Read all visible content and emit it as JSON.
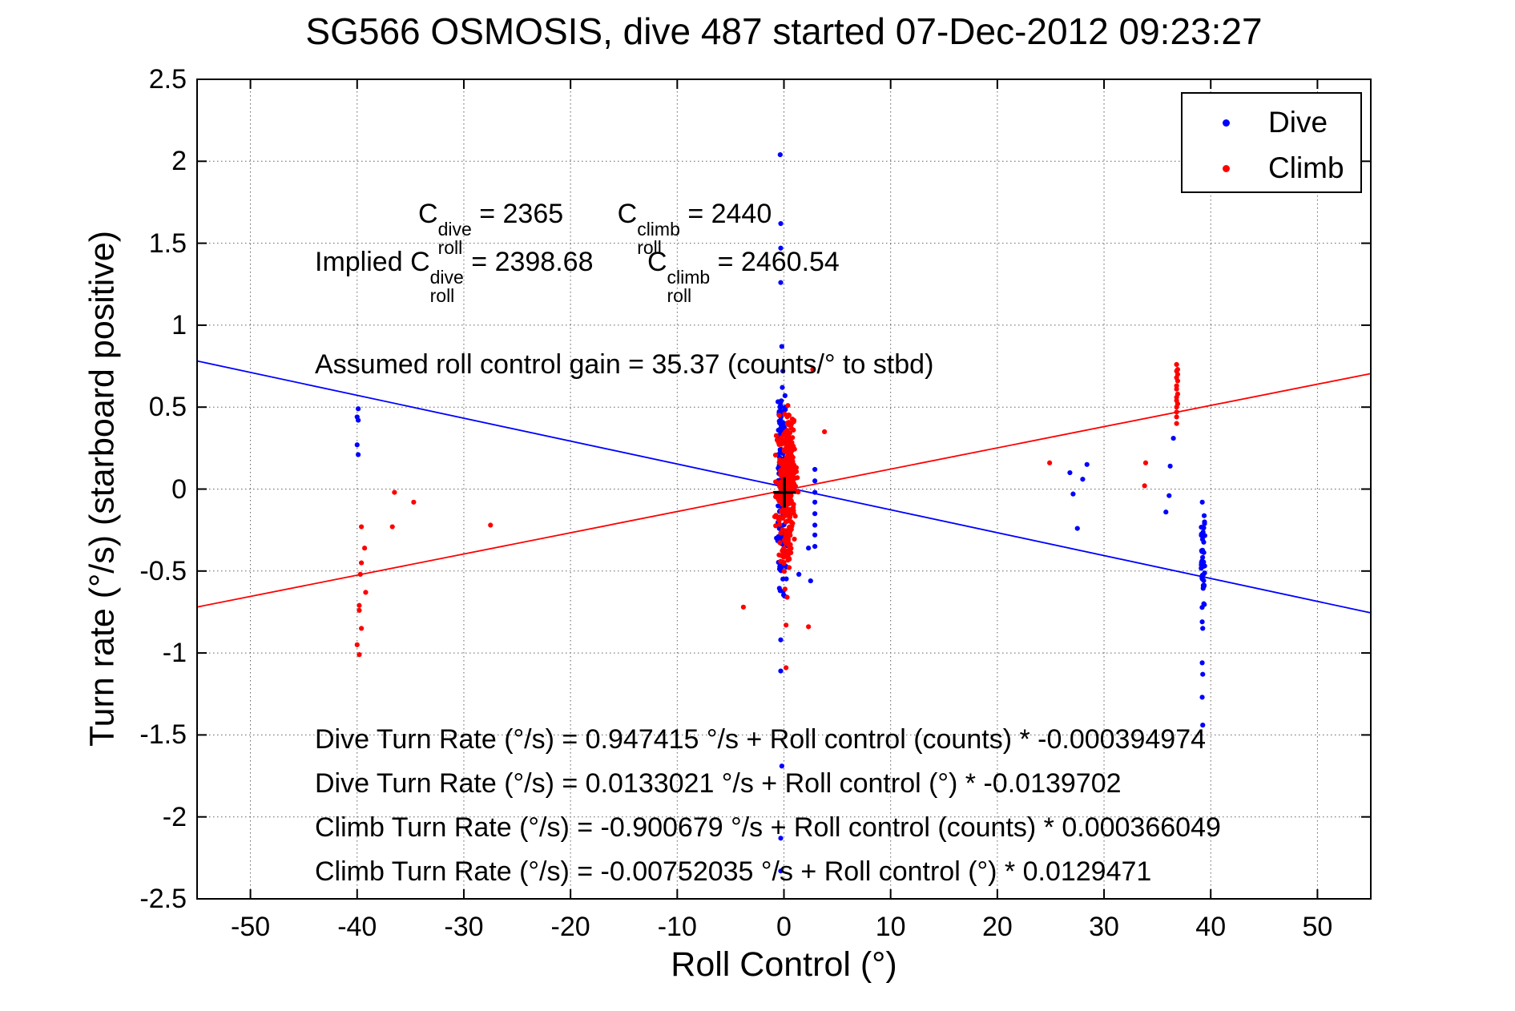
{
  "title": "SG566 OSMOSIS, dive 487 started 07-Dec-2012 09:23:27",
  "colors": {
    "dive": "#0000ff",
    "climb": "#ff0000",
    "axis": "#000000",
    "grid": "#606060",
    "background": "#ffffff"
  },
  "chart_data": {
    "type": "scatter",
    "title": "SG566 OSMOSIS, dive 487 started 07-Dec-2012 09:23:27",
    "xlabel": "Roll Control (°)",
    "ylabel": "Turn rate (°/s) (starboard positive)",
    "xlim": [
      -55,
      55
    ],
    "ylim": [
      -2.5,
      2.5
    ],
    "xticks": [
      -50,
      -40,
      -30,
      -20,
      -10,
      0,
      10,
      20,
      30,
      40,
      50
    ],
    "yticks": [
      -2.5,
      -2,
      -1.5,
      -1,
      -0.5,
      0,
      0.5,
      1,
      1.5,
      2,
      2.5
    ],
    "grid": "dotted",
    "legend": {
      "position": "top-right",
      "entries": [
        {
          "label": "Dive",
          "color": "#0000ff"
        },
        {
          "label": "Climb",
          "color": "#ff0000"
        }
      ]
    },
    "annotations": {
      "cal": {
        "c": "C",
        "roll": "roll",
        "dive": "dive",
        "climb": "climb",
        "dive_val": "= 2365",
        "climb_val": "= 2440",
        "implied_prefix": "Implied",
        "implied_dive_val": "= 2398.68",
        "implied_climb_val": "= 2460.54",
        "gain": "Assumed roll control gain = 35.37 (counts/° to stbd)"
      },
      "equations": [
        "Dive Turn Rate (°/s) = 0.947415 °/s + Roll control (counts) * -0.000394974",
        "Dive Turn Rate (°/s) = 0.0133021 °/s + Roll control (°) * -0.0139702",
        "Climb Turn Rate (°/s) = -0.900679 °/s + Roll control (counts) * 0.000366049",
        "Climb Turn Rate (°/s) = -0.00752035 °/s + Roll control (°) * 0.0129471"
      ]
    },
    "fits": [
      {
        "name": "dive",
        "slope": -0.0139702,
        "intercept": 0.0133021,
        "color": "#0000ff"
      },
      {
        "name": "climb",
        "slope": 0.0129471,
        "intercept": -0.00752035,
        "color": "#ff0000"
      }
    ],
    "origin_marker": {
      "x": 0.05,
      "y": -0.02,
      "color": "#000000"
    },
    "dive_points": [
      [
        -0.35,
        2.04
      ],
      [
        -0.3,
        1.62
      ],
      [
        -0.3,
        1.47
      ],
      [
        -0.3,
        1.26
      ],
      [
        -0.2,
        0.87
      ],
      [
        -0.1,
        0.72
      ],
      [
        -0.15,
        0.62
      ],
      [
        0.1,
        0.57
      ],
      [
        0.15,
        0.5
      ],
      [
        2.9,
        0.12
      ],
      [
        2.9,
        0.05
      ],
      [
        2.9,
        -0.02
      ],
      [
        2.9,
        -0.08
      ],
      [
        2.9,
        -0.15
      ],
      [
        2.9,
        -0.22
      ],
      [
        2.9,
        -0.28
      ],
      [
        2.9,
        -0.35
      ],
      [
        2.3,
        -0.36
      ],
      [
        1.4,
        -0.52
      ],
      [
        2.5,
        -0.56
      ],
      [
        -0.3,
        -0.92
      ],
      [
        -0.3,
        -1.11
      ],
      [
        -0.2,
        -1.69
      ],
      [
        -0.3,
        -2.13
      ],
      [
        -0.3,
        -2.33
      ],
      [
        -39.9,
        0.49
      ],
      [
        -40.0,
        0.44
      ],
      [
        -39.9,
        0.42
      ],
      [
        -40.0,
        0.27
      ],
      [
        -39.9,
        0.21
      ],
      [
        28.4,
        0.15
      ],
      [
        26.8,
        0.1
      ],
      [
        28.0,
        0.06
      ],
      [
        27.1,
        -0.03
      ],
      [
        27.5,
        -0.24
      ],
      [
        36.5,
        0.31
      ],
      [
        36.2,
        0.14
      ],
      [
        36.1,
        -0.04
      ],
      [
        35.8,
        -0.14
      ],
      [
        39.2,
        -0.81
      ],
      [
        39.25,
        -0.85
      ],
      [
        39.2,
        -1.06
      ],
      [
        39.25,
        -1.13
      ],
      [
        39.2,
        -1.27
      ],
      [
        39.25,
        -1.44
      ]
    ],
    "climb_points": [
      [
        -36.5,
        -0.02
      ],
      [
        -34.7,
        -0.08
      ],
      [
        -39.6,
        -0.23
      ],
      [
        -36.7,
        -0.23
      ],
      [
        -39.3,
        -0.36
      ],
      [
        -39.6,
        -0.45
      ],
      [
        -39.7,
        -0.52
      ],
      [
        -39.2,
        -0.63
      ],
      [
        -39.8,
        -0.71
      ],
      [
        -39.8,
        -0.74
      ],
      [
        -39.6,
        -0.85
      ],
      [
        -40.0,
        -0.95
      ],
      [
        -39.8,
        -1.01
      ],
      [
        -27.5,
        -0.22
      ],
      [
        2.7,
        0.73
      ],
      [
        3.8,
        0.35
      ],
      [
        24.9,
        0.16
      ],
      [
        33.9,
        0.16
      ],
      [
        33.8,
        0.02
      ],
      [
        36.8,
        0.76
      ],
      [
        36.9,
        0.73
      ],
      [
        36.8,
        0.72
      ],
      [
        36.9,
        0.7
      ],
      [
        36.8,
        0.68
      ],
      [
        36.9,
        0.66
      ],
      [
        36.8,
        0.63
      ],
      [
        36.8,
        0.61
      ],
      [
        36.9,
        0.58
      ],
      [
        36.8,
        0.56
      ],
      [
        36.8,
        0.54
      ],
      [
        36.9,
        0.52
      ],
      [
        36.8,
        0.5
      ],
      [
        36.8,
        0.47
      ],
      [
        36.8,
        0.44
      ],
      [
        36.8,
        0.4
      ],
      [
        0.1,
        -0.61
      ],
      [
        0.3,
        -0.66
      ],
      [
        -3.8,
        -0.72
      ],
      [
        0.2,
        -0.83
      ],
      [
        2.3,
        -0.84
      ],
      [
        0.2,
        -1.09
      ]
    ],
    "dive_clusters": [
      {
        "cx": -0.25,
        "cy": 0.05,
        "sx": 0.18,
        "sy": 0.26,
        "n": 110,
        "seed": 7,
        "ylo": -0.62,
        "yhi": 0.55
      },
      {
        "cx": -0.3,
        "cy": 0.43,
        "sx": 0.1,
        "sy": 0.05,
        "n": 14,
        "seed": 13
      },
      {
        "cx": -0.1,
        "cy": -0.45,
        "sx": 0.25,
        "sy": 0.12,
        "n": 25,
        "seed": 21,
        "ylo": -0.78,
        "yhi": -0.2
      },
      {
        "cx": 39.25,
        "cy": -0.35,
        "sx": 0.12,
        "sy": 0.14,
        "n": 30,
        "seed": 31,
        "ylo": -0.75,
        "yhi": -0.08
      },
      {
        "cx": 39.25,
        "cy": -0.6,
        "sx": 0.1,
        "sy": 0.08,
        "n": 14,
        "seed": 37,
        "ylo": -0.75,
        "yhi": -0.3
      }
    ],
    "climb_clusters": [
      {
        "cx": 0.35,
        "cy": 0.03,
        "sx": 0.38,
        "sy": 0.14,
        "n": 300,
        "seed": 3,
        "ylo": -0.4,
        "yhi": 0.5
      },
      {
        "cx": 0.5,
        "cy": 0.3,
        "sx": 0.25,
        "sy": 0.09,
        "n": 60,
        "seed": 5,
        "ylo": 0.1,
        "yhi": 0.55
      },
      {
        "cx": 0.25,
        "cy": -0.33,
        "sx": 0.28,
        "sy": 0.1,
        "n": 45,
        "seed": 11,
        "ylo": -0.58,
        "yhi": -0.1
      },
      {
        "cx": -0.5,
        "cy": 0.0,
        "sx": 0.2,
        "sy": 0.2,
        "n": 25,
        "seed": 17,
        "ylo": -0.45,
        "yhi": 0.45
      }
    ]
  }
}
